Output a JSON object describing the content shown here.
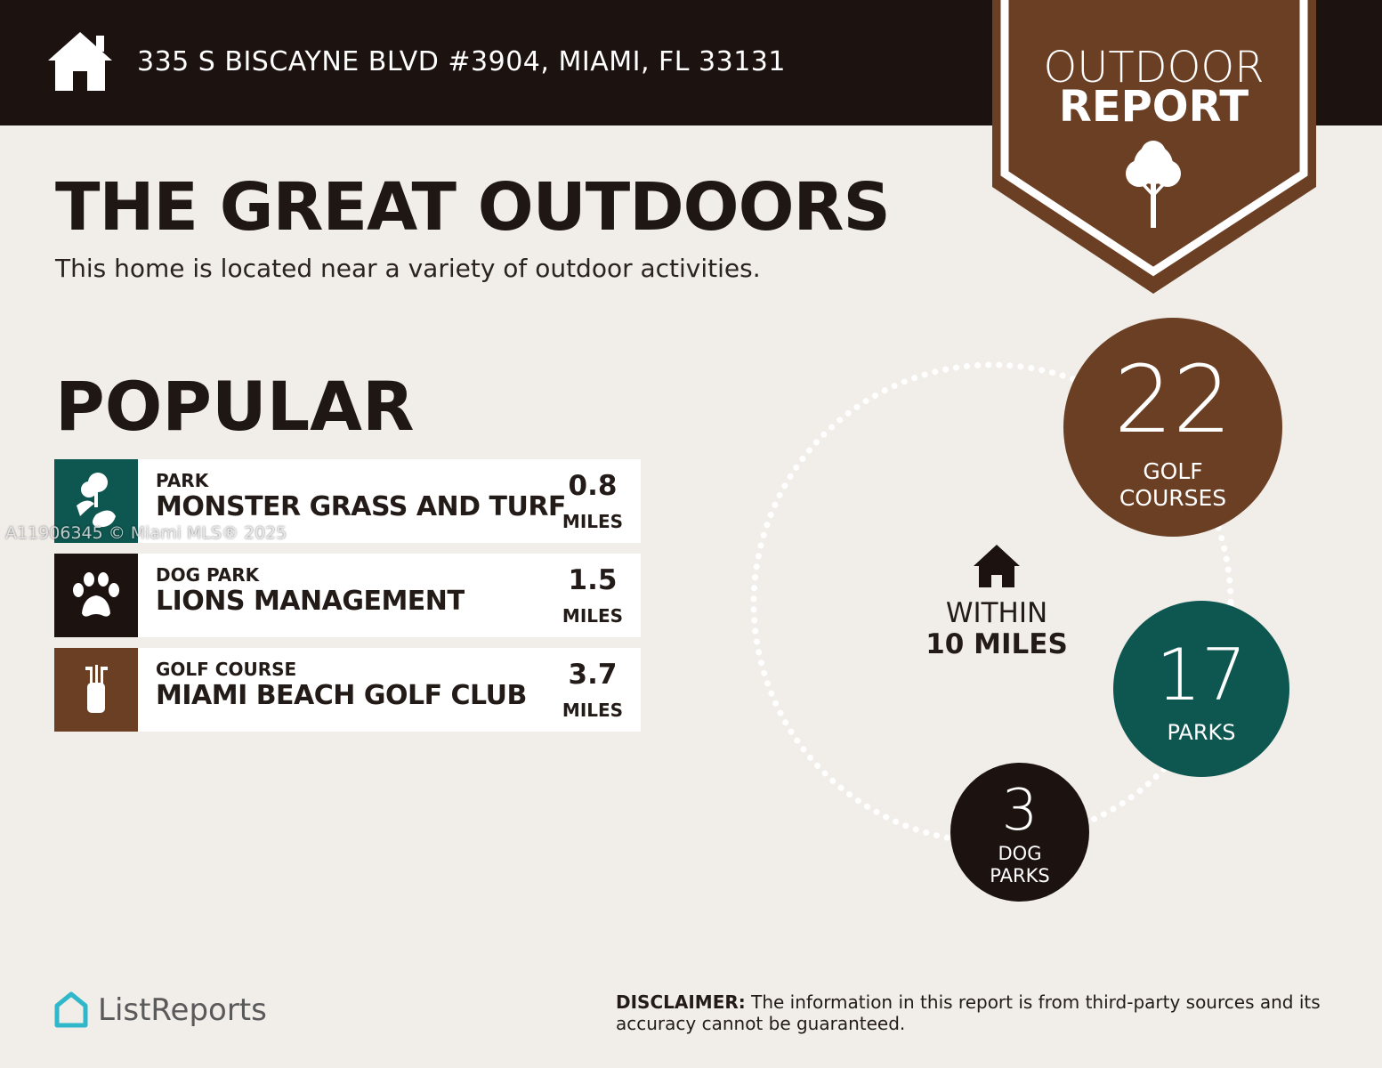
{
  "header": {
    "address": "335 S BISCAYNE BLVD #3904, MIAMI, FL 33131",
    "icon": "home-icon"
  },
  "badge": {
    "line1": "OUTDOOR",
    "line2": "REPORT",
    "icon": "tree-icon"
  },
  "title": "THE GREAT OUTDOORS",
  "subtitle": "This home is located near a variety of outdoor activities.",
  "popular": {
    "heading": "POPULAR",
    "items": [
      {
        "category": "PARK",
        "name": "MONSTER GRASS AND TURF",
        "distance": "0.8",
        "unit": "MILES",
        "icon": "park-icon",
        "color": "#0e5650"
      },
      {
        "category": "DOG PARK",
        "name": "LIONS MANAGEMENT",
        "distance": "1.5",
        "unit": "MILES",
        "icon": "paw-icon",
        "color": "#1c1210"
      },
      {
        "category": "GOLF COURSE",
        "name": "MIAMI BEACH GOLF CLUB",
        "distance": "3.7",
        "unit": "MILES",
        "icon": "golf-bag-icon",
        "color": "#6b3f24"
      }
    ]
  },
  "summary": {
    "within_line1": "WITHIN",
    "within_line2": "10 MILES",
    "golf": {
      "count": "22",
      "label1": "GOLF",
      "label2": "COURSES",
      "color": "#6b3f24"
    },
    "parks": {
      "count": "17",
      "label1": "PARKS",
      "color": "#0e5650"
    },
    "dog": {
      "count": "3",
      "label1": "DOG",
      "label2": "PARKS",
      "color": "#1c1210"
    }
  },
  "watermark": "A11906345 © Miami MLS® 2025",
  "footer": {
    "logo": "ListReports",
    "disclaimer_bold": "DISCLAIMER:",
    "disclaimer_text": " The information in this report is from third-party sources and its accuracy cannot be guaranteed."
  }
}
